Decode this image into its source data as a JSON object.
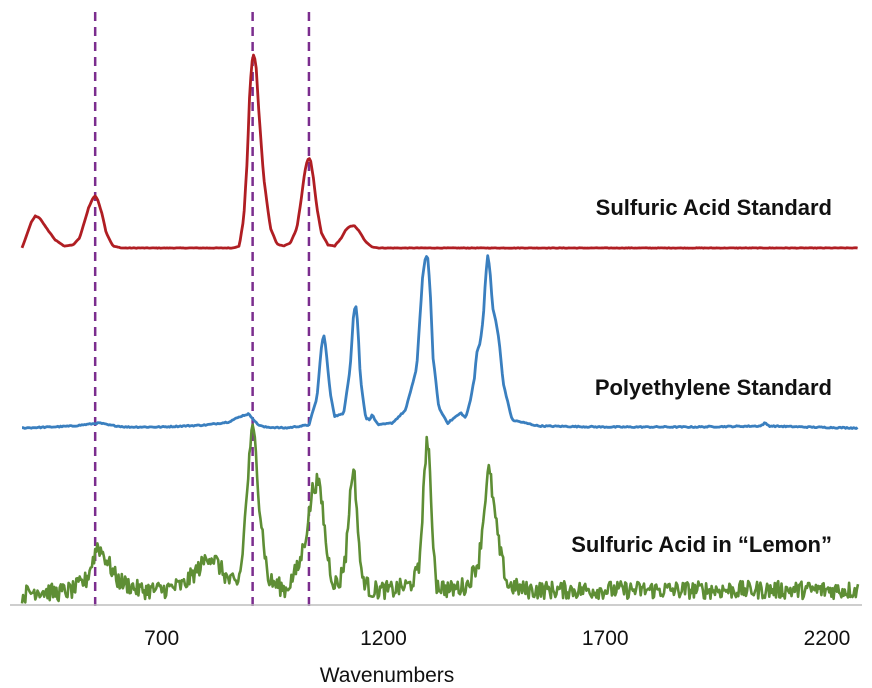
{
  "chart_data": {
    "type": "line",
    "title": "",
    "xlabel": "Wavenumbers",
    "ylabel": "",
    "xlim": [
      385,
      2270
    ],
    "xticks": [
      700,
      1200,
      1700,
      2200
    ],
    "grid": false,
    "legend": "none",
    "reference_lines": [
      {
        "x": 550,
        "style": "dashed",
        "color": "#7b2d8e"
      },
      {
        "x": 905,
        "style": "dashed",
        "color": "#7b2d8e"
      },
      {
        "x": 1032,
        "style": "dashed",
        "color": "#7b2d8e"
      }
    ],
    "series": [
      {
        "name": "Sulfuric Acid Standard",
        "color": "#b01e23",
        "baseline": 248,
        "x": [
          385,
          395,
          405,
          415,
          425,
          440,
          460,
          480,
          500,
          515,
          525,
          535,
          545,
          550,
          555,
          565,
          575,
          590,
          610,
          640,
          700,
          800,
          860,
          875,
          885,
          893,
          898,
          903,
          908,
          913,
          920,
          930,
          945,
          960,
          975,
          990,
          1005,
          1015,
          1022,
          1028,
          1032,
          1036,
          1042,
          1050,
          1060,
          1075,
          1090,
          1105,
          1115,
          1125,
          1135,
          1145,
          1160,
          1175,
          1190,
          1220,
          1300,
          1500,
          1800,
          2100,
          2270
        ],
        "y": [
          0,
          12,
          25,
          32,
          30,
          20,
          8,
          2,
          3,
          10,
          25,
          40,
          50,
          52,
          49,
          35,
          15,
          2,
          0,
          0,
          0,
          0,
          0,
          2,
          30,
          90,
          150,
          185,
          195,
          180,
          130,
          70,
          20,
          4,
          2,
          5,
          20,
          50,
          75,
          87,
          90,
          87,
          70,
          40,
          15,
          3,
          2,
          10,
          18,
          22,
          22,
          17,
          6,
          1,
          0,
          0,
          0,
          0,
          0,
          0,
          0
        ]
      },
      {
        "name": "Polyethylene Standard",
        "color": "#3a7fbf",
        "baseline": 428,
        "x": [
          385,
          450,
          500,
          540,
          560,
          580,
          620,
          700,
          800,
          850,
          880,
          895,
          905,
          915,
          930,
          980,
          1032,
          1050,
          1060,
          1065,
          1070,
          1080,
          1090,
          1110,
          1125,
          1132,
          1137,
          1142,
          1148,
          1160,
          1170,
          1175,
          1180,
          1190,
          1220,
          1250,
          1275,
          1288,
          1295,
          1300,
          1305,
          1312,
          1325,
          1345,
          1365,
          1375,
          1385,
          1395,
          1405,
          1410,
          1418,
          1425,
          1430,
          1435,
          1440,
          1446,
          1452,
          1460,
          1470,
          1490,
          1550,
          1700,
          1900,
          2050,
          2060,
          2070,
          2150,
          2270
        ],
        "y": [
          0,
          1,
          2,
          4,
          5,
          3,
          1,
          1,
          3,
          6,
          12,
          14,
          10,
          4,
          1,
          0,
          3,
          30,
          80,
          95,
          80,
          35,
          12,
          14,
          60,
          110,
          125,
          105,
          50,
          10,
          8,
          15,
          8,
          3,
          5,
          18,
          60,
          150,
          172,
          170,
          140,
          70,
          20,
          5,
          12,
          15,
          10,
          25,
          50,
          75,
          85,
          110,
          148,
          172,
          160,
          120,
          110,
          90,
          45,
          8,
          2,
          1,
          1,
          2,
          5,
          2,
          1,
          0
        ]
      },
      {
        "name": "Sulfuric Acid in “Lemon”",
        "color": "#5e8e35",
        "baseline": 605,
        "x": [
          385,
          420,
          460,
          500,
          530,
          545,
          555,
          570,
          600,
          650,
          700,
          750,
          790,
          805,
          820,
          850,
          870,
          880,
          890,
          900,
          905,
          912,
          920,
          940,
          980,
          1010,
          1025,
          1032,
          1040,
          1052,
          1062,
          1072,
          1085,
          1100,
          1115,
          1125,
          1130,
          1136,
          1142,
          1150,
          1170,
          1220,
          1260,
          1280,
          1290,
          1297,
          1302,
          1308,
          1320,
          1350,
          1390,
          1415,
          1425,
          1432,
          1437,
          1442,
          1450,
          1462,
          1480,
          1520,
          1600,
          1800,
          2000,
          2270
        ],
        "y": [
          10,
          15,
          12,
          15,
          25,
          45,
          60,
          50,
          25,
          15,
          15,
          20,
          40,
          50,
          45,
          25,
          20,
          40,
          100,
          160,
          175,
          160,
          100,
          25,
          15,
          40,
          70,
          90,
          115,
          125,
          100,
          55,
          25,
          20,
          50,
          110,
          135,
          125,
          80,
          30,
          15,
          15,
          20,
          35,
          110,
          165,
          160,
          90,
          20,
          15,
          20,
          45,
          85,
          120,
          135,
          125,
          95,
          55,
          20,
          15,
          15,
          15,
          15,
          15
        ]
      }
    ]
  }
}
